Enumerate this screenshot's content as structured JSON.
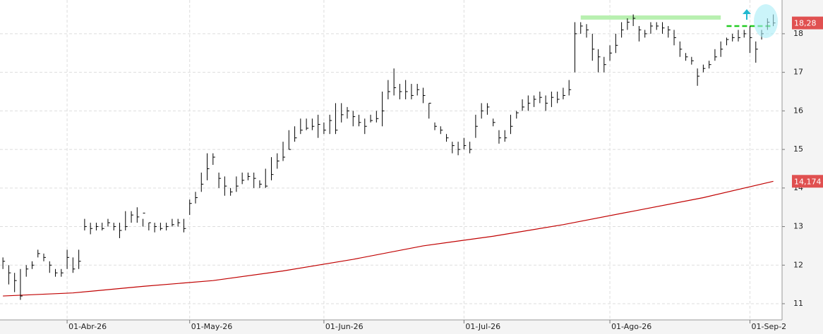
{
  "chart_data": {
    "type": "ohlc",
    "high": [
      12.2,
      12.0,
      11.8,
      11.9,
      12.0,
      12.1,
      12.4,
      12.3,
      12.1,
      11.9,
      11.9,
      12.4,
      12.2,
      12.4,
      13.2,
      13.1,
      13.1,
      13.1,
      13.2,
      13.1,
      13.1,
      13.4,
      13.4,
      13.5,
      13.2,
      13.1,
      13.1,
      13.1,
      13.1,
      13.2,
      13.2,
      13.2,
      13.7,
      13.9,
      14.4,
      14.9,
      14.9,
      14.4,
      14.3,
      14.0,
      14.3,
      14.4,
      14.4,
      14.4,
      14.2,
      14.5,
      14.8,
      14.9,
      15.2,
      15.5,
      15.6,
      15.8,
      15.8,
      15.8,
      15.9,
      15.7,
      15.9,
      16.2,
      16.2,
      16.1,
      16.0,
      15.9,
      15.8,
      15.9,
      16.0,
      16.5,
      16.8,
      17.1,
      16.7,
      16.8,
      16.7,
      16.7,
      16.6,
      16.2,
      15.7,
      15.6,
      15.4,
      15.2,
      15.2,
      15.3,
      15.2,
      15.9,
      16.2,
      16.2,
      15.8,
      15.5,
      15.5,
      15.9,
      16.0,
      16.3,
      16.4,
      16.4,
      16.5,
      16.4,
      16.5,
      16.5,
      16.6,
      16.8,
      18.3,
      18.3,
      18.25,
      18.0,
      17.6,
      17.4,
      17.7,
      18.0,
      18.3,
      18.4,
      18.5,
      18.2,
      18.1,
      18.3,
      18.3,
      18.3,
      18.2,
      18.1,
      17.8,
      17.5,
      17.4,
      17.1,
      17.2,
      17.3,
      17.6,
      17.8,
      17.9,
      18.0,
      18.1,
      18.1,
      18.2,
      17.8,
      18.1,
      18.4,
      18.5
    ],
    "low": [
      11.9,
      11.5,
      11.3,
      11.1,
      11.7,
      11.9,
      12.2,
      12.1,
      11.8,
      11.7,
      11.7,
      11.9,
      11.8,
      11.9,
      12.9,
      12.8,
      12.9,
      12.9,
      13.0,
      12.9,
      12.7,
      12.9,
      13.1,
      13.1,
      13.0,
      12.9,
      12.85,
      12.9,
      12.9,
      13.0,
      13.0,
      12.85,
      13.3,
      13.6,
      13.9,
      14.2,
      14.6,
      14.0,
      13.8,
      13.8,
      13.9,
      14.1,
      14.2,
      14.0,
      14.0,
      14.0,
      14.2,
      14.5,
      14.7,
      15.0,
      15.2,
      15.4,
      15.5,
      15.5,
      15.3,
      15.4,
      15.4,
      15.4,
      15.7,
      15.8,
      15.6,
      15.6,
      15.4,
      15.7,
      15.7,
      15.6,
      16.3,
      16.4,
      16.3,
      16.3,
      16.3,
      16.4,
      16.2,
      15.8,
      15.5,
      15.4,
      15.2,
      14.9,
      14.85,
      15.0,
      14.9,
      15.3,
      15.8,
      15.9,
      15.6,
      15.15,
      15.2,
      15.4,
      15.8,
      16.0,
      16.0,
      16.1,
      16.2,
      16.0,
      16.1,
      16.2,
      16.3,
      16.4,
      17.0,
      18.0,
      17.9,
      17.3,
      17.0,
      17.0,
      17.3,
      17.5,
      17.9,
      18.1,
      18.2,
      17.8,
      17.9,
      18.0,
      18.1,
      18.0,
      17.9,
      17.7,
      17.4,
      17.3,
      17.2,
      16.65,
      17.0,
      17.1,
      17.3,
      17.4,
      17.7,
      17.8,
      17.8,
      17.9,
      17.5,
      17.25,
      17.85,
      18.1,
      18.2
    ],
    "close": [
      12.1,
      11.8,
      11.6,
      11.2,
      11.9,
      12.0,
      12.3,
      12.2,
      12.0,
      11.8,
      11.8,
      12.2,
      11.9,
      12.1,
      13.0,
      12.95,
      13.0,
      12.95,
      13.1,
      13.0,
      12.9,
      13.0,
      13.3,
      13.25,
      13.35,
      13.1,
      13.0,
      12.95,
      13.0,
      13.05,
      13.1,
      12.95,
      13.6,
      13.75,
      14.1,
      14.5,
      14.8,
      14.25,
      14.05,
      13.9,
      14.05,
      14.2,
      14.3,
      14.25,
      14.1,
      14.05,
      14.35,
      14.7,
      14.8,
      15.0,
      15.3,
      15.5,
      15.55,
      15.6,
      15.65,
      15.5,
      15.75,
      15.5,
      15.9,
      16.0,
      15.85,
      15.7,
      15.6,
      15.75,
      15.8,
      16.0,
      16.5,
      16.6,
      16.5,
      16.5,
      16.4,
      16.55,
      16.4,
      16.2,
      15.6,
      15.5,
      15.3,
      15.1,
      15.0,
      15.1,
      15.0,
      15.6,
      16.0,
      16.1,
      15.7,
      15.3,
      15.3,
      15.6,
      15.95,
      16.1,
      16.2,
      16.3,
      16.35,
      16.2,
      16.35,
      16.3,
      16.4,
      16.55,
      18.0,
      18.2,
      18.1,
      17.6,
      17.4,
      17.2,
      17.5,
      17.7,
      18.1,
      18.3,
      18.4,
      18.1,
      18.0,
      18.2,
      18.2,
      18.15,
      18.1,
      17.9,
      17.6,
      17.4,
      17.3,
      16.9,
      17.1,
      17.2,
      17.4,
      17.6,
      17.85,
      17.9,
      17.9,
      18.0,
      17.9,
      17.6,
      18.0,
      18.3,
      18.28
    ],
    "bar_color": "#000000",
    "moving_average": {
      "color": "#c00000",
      "x": [
        0,
        12,
        24,
        36,
        48,
        60,
        72,
        84,
        96,
        108,
        120,
        132
      ],
      "values": [
        11.2,
        11.28,
        11.45,
        11.6,
        11.85,
        12.15,
        12.5,
        12.75,
        13.05,
        13.4,
        13.75,
        14.174
      ]
    },
    "last_labels": [
      {
        "value": 18.28,
        "label": "18,28"
      },
      {
        "value": 14.174,
        "label": "14,174"
      }
    ],
    "levels": [
      {
        "value": 18.42,
        "x": [
          99,
          123
        ],
        "color": "#b8f0b0"
      },
      {
        "value": 18.2,
        "x": [
          124,
          132
        ],
        "color": "#22cc22"
      }
    ],
    "xlim": [
      -0.5,
      133.5
    ],
    "xticks": [
      {
        "value": 11,
        "label": "01-Abr-26"
      },
      {
        "value": 32,
        "label": "01-May-26"
      },
      {
        "value": 55,
        "label": "01-Jun-26"
      },
      {
        "value": 79,
        "label": "01-Jul-26"
      },
      {
        "value": 104,
        "label": "01-Ago-26"
      },
      {
        "value": 128,
        "label": "01-Sep-2"
      }
    ],
    "ylim": [
      10.58,
      18.875
    ],
    "yticks": [
      11,
      12,
      13,
      14,
      15,
      16,
      17,
      18
    ],
    "grid": true
  }
}
